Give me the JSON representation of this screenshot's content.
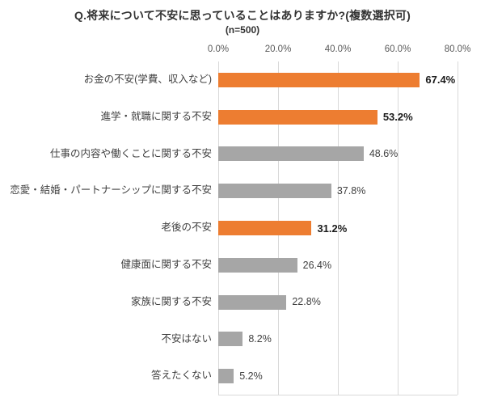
{
  "title": "Q.将来について不安に思っていることはありますか?(複数選択可)",
  "subtitle": "(n=500)",
  "chart_data": {
    "type": "bar",
    "orientation": "horizontal",
    "title": "Q.将来について不安に思っていることはありますか?(複数選択可)",
    "subtitle": "(n=500)",
    "xlim": [
      0,
      80
    ],
    "grid": true,
    "ticks": [
      "0.0%",
      "20.0%",
      "40.0%",
      "60.0%",
      "80.0%"
    ],
    "colors": {
      "orange": "#ED7D31",
      "gray": "#A6A6A6"
    },
    "items": [
      {
        "label": "お金の不安(学費、収入など)",
        "value": 67.4,
        "display": "67.4%",
        "color": "orange",
        "bold": true
      },
      {
        "label": "進学・就職に関する不安",
        "value": 53.2,
        "display": "53.2%",
        "color": "orange",
        "bold": true
      },
      {
        "label": "仕事の内容や働くことに関する不安",
        "value": 48.6,
        "display": "48.6%",
        "color": "gray",
        "bold": false
      },
      {
        "label": "恋愛・結婚・パートナーシップに関する不安",
        "value": 37.8,
        "display": "37.8%",
        "color": "gray",
        "bold": false
      },
      {
        "label": "老後の不安",
        "value": 31.2,
        "display": "31.2%",
        "color": "orange",
        "bold": true
      },
      {
        "label": "健康面に関する不安",
        "value": 26.4,
        "display": "26.4%",
        "color": "gray",
        "bold": false
      },
      {
        "label": "家族に関する不安",
        "value": 22.8,
        "display": "22.8%",
        "color": "gray",
        "bold": false
      },
      {
        "label": "不安はない",
        "value": 8.2,
        "display": "8.2%",
        "color": "gray",
        "bold": false
      },
      {
        "label": "答えたくない",
        "value": 5.2,
        "display": "5.2%",
        "color": "gray",
        "bold": false
      }
    ]
  }
}
